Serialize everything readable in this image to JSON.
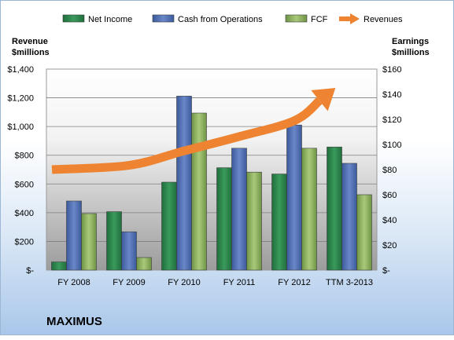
{
  "chart_data": {
    "type": "bar",
    "company": "MAXIMUS",
    "categories": [
      "FY 2008",
      "FY 2009",
      "FY 2010",
      "FY 2011",
      "FY 2012",
      "TTM 3-2013"
    ],
    "y_left": {
      "label_line1": "Revenue",
      "label_line2": "$millions",
      "ylim": [
        0,
        1400
      ],
      "ticks": [
        0,
        200,
        400,
        600,
        800,
        1000,
        1200,
        1400
      ],
      "tick_labels": [
        "$-",
        "$200",
        "$400",
        "$600",
        "$800",
        "$1,000",
        "$1,200",
        "$1,400"
      ]
    },
    "y_right": {
      "label_line1": "Earnings",
      "label_line2": "$millions",
      "ylim": [
        0,
        160
      ],
      "ticks": [
        0,
        20,
        40,
        60,
        80,
        100,
        120,
        140,
        160
      ],
      "tick_labels": [
        "$-",
        "$20",
        "$40",
        "$60",
        "$80",
        "$100",
        "$120",
        "$140",
        "$160"
      ]
    },
    "series": [
      {
        "name": "Net Income",
        "kind": "bar",
        "axis": "right",
        "color": "#2e8b4f",
        "values": [
          6.5,
          46.5,
          70,
          81.5,
          76.5,
          98
        ]
      },
      {
        "name": "Cash from Operations",
        "kind": "bar",
        "axis": "right",
        "color": "#4f6fb3",
        "values": [
          55,
          30.5,
          138.5,
          97,
          115.5,
          85
        ]
      },
      {
        "name": "FCF",
        "kind": "bar",
        "axis": "right",
        "color": "#8db360",
        "values": [
          45,
          10,
          125,
          78,
          97,
          60
        ]
      },
      {
        "name": "Revenues",
        "kind": "arrow",
        "axis": "left",
        "color": "#ee8431",
        "values": [
          700,
          730,
          830,
          930,
          1040,
          1180
        ]
      }
    ],
    "grid": true,
    "legend_position": "top"
  }
}
